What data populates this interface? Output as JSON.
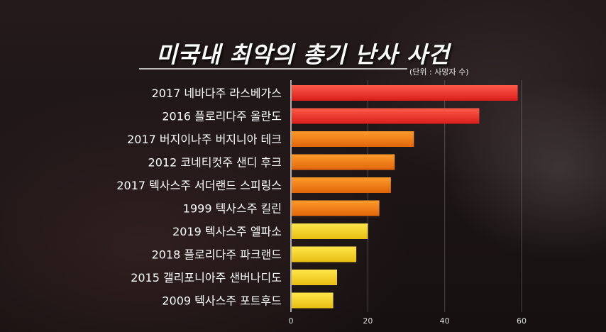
{
  "title": "미국내 최악의 총기 난사 사건",
  "unit_note": "(단위 : 사망자 수)",
  "chart_data": {
    "type": "bar",
    "orientation": "horizontal",
    "title": "미국내 최악의 총기 난사 사건",
    "categories": [
      "2017 네바다주 라스베가스",
      "2016 플로리다주 올란도",
      "2017 버지이나주 버지니아 테크",
      "2012 코네티컷주 샌디 후크",
      "2017 텍사스주 서더랜드 스피링스",
      "1999 텍사스주 킬린",
      "2019 텍사스주 엘파소",
      "2018 플로리다주 파크랜드",
      "2015 갤리포니아주 샌버나디도",
      "2009 텍사스주 포트후드"
    ],
    "values": [
      59,
      49,
      32,
      27,
      26,
      23,
      20,
      17,
      12,
      11
    ],
    "xlim": [
      0,
      60
    ],
    "xticks": [
      0,
      20,
      40,
      60
    ],
    "bar_colors": [
      "#ee2e2a",
      "#ee2e2a",
      "#f07a10",
      "#f07a10",
      "#f07a10",
      "#f07a10",
      "#f2d21e",
      "#f2d21e",
      "#f2d21e",
      "#f2d21e"
    ],
    "grid": true,
    "legend": "none"
  }
}
